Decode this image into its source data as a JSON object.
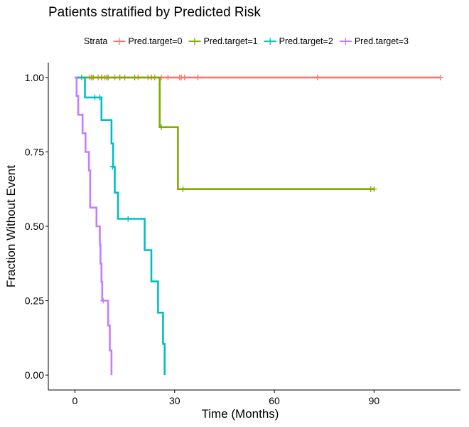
{
  "chart_data": {
    "type": "line",
    "step": true,
    "title": "Patients stratified by Predicted Risk",
    "xlabel": "Time (Months)",
    "ylabel": "Fraction Without Event",
    "xlim": [
      -8,
      116
    ],
    "ylim": [
      -0.05,
      1.05
    ],
    "x_ticks": [
      0,
      30,
      60,
      90
    ],
    "y_ticks": [
      0.0,
      0.25,
      0.5,
      0.75,
      1.0
    ],
    "y_tick_labels": [
      "0.00",
      "0.25",
      "0.50",
      "0.75",
      "1.00"
    ],
    "grid": false,
    "legend": {
      "position": "top",
      "title": "Strata"
    },
    "series": [
      {
        "name": "Pred.target=0",
        "color": "#F8766D",
        "steps": [
          [
            0,
            1.0
          ],
          [
            110,
            1.0
          ]
        ],
        "censored": [
          [
            4.5,
            1.0
          ],
          [
            5,
            1.0
          ],
          [
            7,
            1.0
          ],
          [
            8,
            1.0
          ],
          [
            9,
            1.0
          ],
          [
            9.5,
            1.0
          ],
          [
            12,
            1.0
          ],
          [
            13.5,
            1.0
          ],
          [
            15,
            1.0
          ],
          [
            19,
            1.0
          ],
          [
            22,
            1.0
          ],
          [
            24,
            1.0
          ],
          [
            26,
            1.0
          ],
          [
            28,
            1.0
          ],
          [
            31.5,
            1.0
          ],
          [
            32,
            1.0
          ],
          [
            33,
            1.0
          ],
          [
            37,
            1.0
          ],
          [
            73,
            1.0
          ],
          [
            110,
            1.0
          ]
        ]
      },
      {
        "name": "Pred.target=1",
        "color": "#7CAE00",
        "steps": [
          [
            0,
            1.0
          ],
          [
            25.5,
            1.0
          ],
          [
            25.5,
            0.833
          ],
          [
            31,
            0.833
          ],
          [
            31,
            0.625
          ],
          [
            90,
            0.625
          ]
        ],
        "censored": [
          [
            2,
            1.0
          ],
          [
            5.5,
            1.0
          ],
          [
            8,
            1.0
          ],
          [
            10,
            1.0
          ],
          [
            13.5,
            1.0
          ],
          [
            18,
            1.0
          ],
          [
            23,
            1.0
          ],
          [
            26,
            0.833
          ],
          [
            32.5,
            0.625
          ],
          [
            89,
            0.625
          ],
          [
            90,
            0.625
          ]
        ]
      },
      {
        "name": "Pred.target=2",
        "color": "#00BFC4",
        "steps": [
          [
            0,
            1.0
          ],
          [
            3,
            1.0
          ],
          [
            3,
            0.933
          ],
          [
            8,
            0.933
          ],
          [
            8,
            0.857
          ],
          [
            11,
            0.857
          ],
          [
            11,
            0.778
          ],
          [
            11.5,
            0.778
          ],
          [
            11.5,
            0.7
          ],
          [
            12,
            0.7
          ],
          [
            12,
            0.613
          ],
          [
            13,
            0.613
          ],
          [
            13,
            0.525
          ],
          [
            21,
            0.525
          ],
          [
            21,
            0.42
          ],
          [
            23,
            0.42
          ],
          [
            23,
            0.315
          ],
          [
            25,
            0.315
          ],
          [
            25,
            0.21
          ],
          [
            26.5,
            0.21
          ],
          [
            26.5,
            0.105
          ],
          [
            27,
            0.105
          ],
          [
            27,
            0.0
          ]
        ],
        "censored": [
          [
            6,
            0.933
          ],
          [
            7.5,
            0.933
          ],
          [
            11.3,
            0.7
          ],
          [
            16,
            0.525
          ]
        ]
      },
      {
        "name": "Pred.target=3",
        "color": "#C77CFF",
        "steps": [
          [
            0,
            1.0
          ],
          [
            0.5,
            1.0
          ],
          [
            0.5,
            0.938
          ],
          [
            1,
            0.938
          ],
          [
            1,
            0.875
          ],
          [
            2.3,
            0.875
          ],
          [
            2.3,
            0.813
          ],
          [
            3.2,
            0.813
          ],
          [
            3.2,
            0.75
          ],
          [
            4.2,
            0.75
          ],
          [
            4.2,
            0.688
          ],
          [
            4.6,
            0.688
          ],
          [
            4.6,
            0.563
          ],
          [
            6.5,
            0.563
          ],
          [
            6.5,
            0.5
          ],
          [
            7.5,
            0.5
          ],
          [
            7.5,
            0.438
          ],
          [
            7.7,
            0.438
          ],
          [
            7.7,
            0.375
          ],
          [
            8,
            0.375
          ],
          [
            8,
            0.313
          ],
          [
            8.2,
            0.313
          ],
          [
            8.2,
            0.25
          ],
          [
            10,
            0.25
          ],
          [
            10,
            0.167
          ],
          [
            10.5,
            0.167
          ],
          [
            10.5,
            0.083
          ],
          [
            11,
            0.083
          ],
          [
            11,
            0.0
          ]
        ],
        "censored": [
          [
            8.5,
            0.25
          ]
        ]
      }
    ]
  }
}
